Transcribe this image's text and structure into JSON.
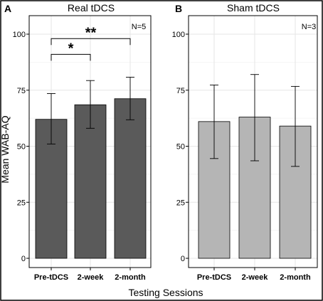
{
  "figure": {
    "ylabel": "Mean WAB-AQ",
    "xlabel": "Testing Sessions",
    "colors": {
      "real_bar": "#5a5a5a",
      "sham_bar": "#b5b5b5",
      "grid": "#e6e6e6",
      "border": "#000000"
    }
  },
  "chart_data": [
    {
      "type": "bar",
      "panel_letter": "A",
      "title": "Real tDCS",
      "n_label": "N=5",
      "categories": [
        "Pre-tDCS",
        "2-week",
        "2-month"
      ],
      "values": [
        62,
        68.5,
        71.2
      ],
      "error_low": [
        51,
        58,
        61.8
      ],
      "error_high": [
        73.5,
        79.3,
        80.8
      ],
      "ylim": [
        0,
        100
      ],
      "yticks": [
        "0",
        "25",
        "50",
        "75",
        "100"
      ],
      "grid": true,
      "significance": [
        {
          "from": "Pre-tDCS",
          "to": "2-week",
          "label": "*",
          "level": 91
        },
        {
          "from": "Pre-tDCS",
          "to": "2-month",
          "label": "**",
          "level": 98
        }
      ]
    },
    {
      "type": "bar",
      "panel_letter": "B",
      "title": "Sham tDCS",
      "n_label": "N=3",
      "categories": [
        "Pre-tDCS",
        "2-week",
        "2-month"
      ],
      "values": [
        61,
        63,
        59
      ],
      "error_low": [
        44.5,
        43.5,
        41
      ],
      "error_high": [
        77.3,
        82,
        76.7
      ],
      "ylim": [
        0,
        100
      ],
      "yticks": [
        "0",
        "25",
        "50",
        "75",
        "100"
      ],
      "grid": true,
      "significance": []
    }
  ]
}
